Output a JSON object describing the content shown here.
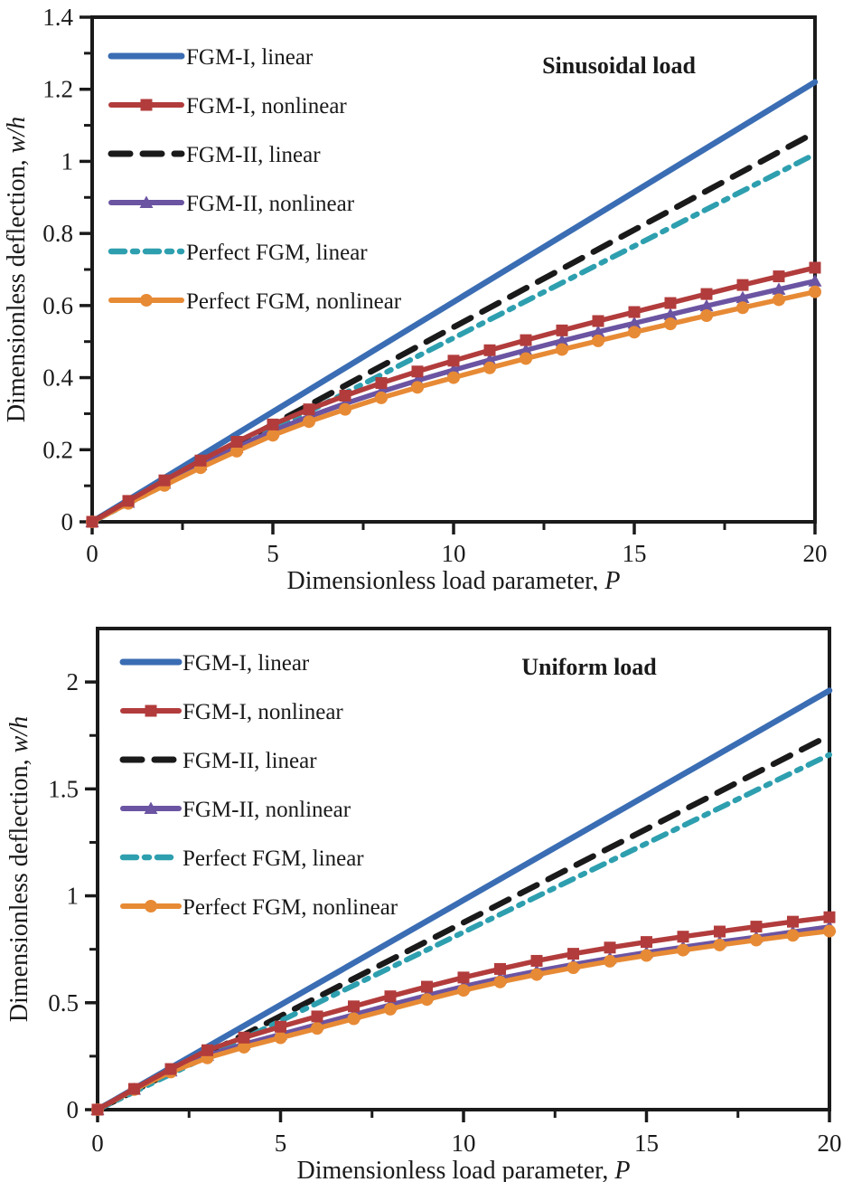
{
  "figure": {
    "background": "#ffffff",
    "axis_color": "#1a1a1a"
  },
  "legend_labels": [
    "FGM-I, linear",
    "FGM-I, nonlinear",
    "FGM-II, linear",
    "FGM-II, nonlinear",
    "Perfect FGM, linear",
    "Perfect FGM, nonlinear"
  ],
  "chart_data": [
    {
      "type": "line",
      "title": "Sinusoidal load",
      "xlabel_main": "Dimensionless load parameter, ",
      "xlabel_symbol": "P",
      "ylabel_main": "Dimensionless deflection, ",
      "ylabel_symbol": "w/h",
      "xlim": [
        0,
        20
      ],
      "ylim": [
        0,
        1.4
      ],
      "x_major_ticks": [
        0,
        5,
        10,
        15,
        20
      ],
      "x_minor_step": 2.5,
      "y_major_ticks": [
        0,
        0.2,
        0.4,
        0.6,
        0.8,
        1,
        1.2,
        1.4
      ],
      "y_minor_step": 0.1,
      "grid": false,
      "legend_position": "upper-left",
      "series": [
        {
          "name": "FGM-I, linear",
          "color": "#3A6DB3",
          "style": "solid",
          "marker": "none",
          "width": 6.5,
          "x": [
            0,
            20
          ],
          "y": [
            0,
            1.22
          ]
        },
        {
          "name": "FGM-I, nonlinear",
          "color": "#B23C3C",
          "style": "solid",
          "marker": "square",
          "width": 5.5,
          "x": [
            0,
            1,
            2,
            3,
            4,
            5,
            6,
            7,
            8,
            9,
            10,
            11,
            12,
            13,
            14,
            15,
            16,
            17,
            18,
            19,
            20
          ],
          "y": [
            0,
            0.058,
            0.115,
            0.17,
            0.222,
            0.27,
            0.312,
            0.35,
            0.385,
            0.417,
            0.447,
            0.476,
            0.504,
            0.531,
            0.557,
            0.582,
            0.607,
            0.632,
            0.657,
            0.681,
            0.705
          ]
        },
        {
          "name": "FGM-II, linear",
          "color": "#1a1a1a",
          "style": "dash",
          "marker": "none",
          "width": 6.5,
          "x": [
            0,
            20
          ],
          "y": [
            0,
            1.08
          ]
        },
        {
          "name": "FGM-II, nonlinear",
          "color": "#6B54A2",
          "style": "solid",
          "marker": "triangle",
          "width": 5.5,
          "x": [
            0,
            1,
            2,
            3,
            4,
            5,
            6,
            7,
            8,
            9,
            10,
            11,
            12,
            13,
            14,
            15,
            16,
            17,
            18,
            19,
            20
          ],
          "y": [
            0,
            0.054,
            0.107,
            0.158,
            0.206,
            0.252,
            0.292,
            0.328,
            0.361,
            0.392,
            0.421,
            0.449,
            0.476,
            0.502,
            0.527,
            0.551,
            0.575,
            0.599,
            0.622,
            0.645,
            0.668
          ]
        },
        {
          "name": "Perfect FGM, linear",
          "color": "#2E9FAF",
          "style": "dashdot",
          "marker": "none",
          "width": 6,
          "x": [
            0,
            20
          ],
          "y": [
            0,
            1.02
          ]
        },
        {
          "name": "Perfect FGM, nonlinear",
          "color": "#E78A35",
          "style": "solid",
          "marker": "circle",
          "width": 5.5,
          "x": [
            0,
            1,
            2,
            3,
            4,
            5,
            6,
            7,
            8,
            9,
            10,
            11,
            12,
            13,
            14,
            15,
            16,
            17,
            18,
            19,
            20
          ],
          "y": [
            0,
            0.051,
            0.101,
            0.15,
            0.196,
            0.24,
            0.278,
            0.312,
            0.344,
            0.373,
            0.4,
            0.427,
            0.453,
            0.478,
            0.502,
            0.526,
            0.549,
            0.572,
            0.594,
            0.616,
            0.638
          ]
        }
      ]
    },
    {
      "type": "line",
      "title": "Uniform load",
      "xlabel_main": "Dimensionless load parameter, ",
      "xlabel_symbol": "P",
      "ylabel_main": "Dimensionless deflection, ",
      "ylabel_symbol": "w/h",
      "xlim": [
        0,
        20
      ],
      "ylim": [
        0,
        2.25
      ],
      "x_major_ticks": [
        0,
        5,
        10,
        15,
        20
      ],
      "x_minor_step": 2.5,
      "y_major_ticks": [
        0,
        0.5,
        1,
        1.5,
        2
      ],
      "y_minor_step": 0.25,
      "grid": false,
      "legend_position": "upper-left",
      "series": [
        {
          "name": "FGM-I, linear",
          "color": "#3A6DB3",
          "style": "solid",
          "marker": "none",
          "width": 6.5,
          "x": [
            0,
            20
          ],
          "y": [
            0,
            1.96
          ]
        },
        {
          "name": "FGM-I, nonlinear",
          "color": "#B23C3C",
          "style": "solid",
          "marker": "square",
          "width": 5.5,
          "x": [
            0,
            1,
            2,
            3,
            4,
            5,
            6,
            7,
            8,
            9,
            10,
            11,
            12,
            13,
            14,
            15,
            16,
            17,
            18,
            19,
            20
          ],
          "y": [
            0,
            0.097,
            0.19,
            0.278,
            0.337,
            0.388,
            0.436,
            0.483,
            0.53,
            0.575,
            0.618,
            0.658,
            0.696,
            0.729,
            0.758,
            0.784,
            0.809,
            0.833,
            0.856,
            0.879,
            0.9
          ]
        },
        {
          "name": "FGM-II, linear",
          "color": "#1a1a1a",
          "style": "dash",
          "marker": "none",
          "width": 6.5,
          "x": [
            0,
            20
          ],
          "y": [
            0,
            1.75
          ]
        },
        {
          "name": "FGM-II, nonlinear",
          "color": "#6B54A2",
          "style": "solid",
          "marker": "triangle",
          "width": 5.5,
          "x": [
            0,
            1,
            2,
            3,
            4,
            5,
            6,
            7,
            8,
            9,
            10,
            11,
            12,
            13,
            14,
            15,
            16,
            17,
            18,
            19,
            20
          ],
          "y": [
            0,
            0.095,
            0.181,
            0.253,
            0.306,
            0.352,
            0.398,
            0.444,
            0.49,
            0.534,
            0.576,
            0.614,
            0.648,
            0.679,
            0.708,
            0.735,
            0.76,
            0.784,
            0.807,
            0.831,
            0.855
          ]
        },
        {
          "name": "Perfect FGM, linear",
          "color": "#2E9FAF",
          "style": "dashdot",
          "marker": "none",
          "width": 6,
          "x": [
            0,
            20
          ],
          "y": [
            0,
            1.66
          ]
        },
        {
          "name": "Perfect FGM, nonlinear",
          "color": "#E78A35",
          "style": "solid",
          "marker": "circle",
          "width": 5.5,
          "x": [
            0,
            1,
            2,
            3,
            4,
            5,
            6,
            7,
            8,
            9,
            10,
            11,
            12,
            13,
            14,
            15,
            16,
            17,
            18,
            19,
            20
          ],
          "y": [
            0,
            0.094,
            0.176,
            0.242,
            0.292,
            0.336,
            0.38,
            0.425,
            0.47,
            0.515,
            0.558,
            0.597,
            0.632,
            0.664,
            0.694,
            0.721,
            0.746,
            0.77,
            0.793,
            0.815,
            0.835
          ]
        }
      ]
    }
  ]
}
